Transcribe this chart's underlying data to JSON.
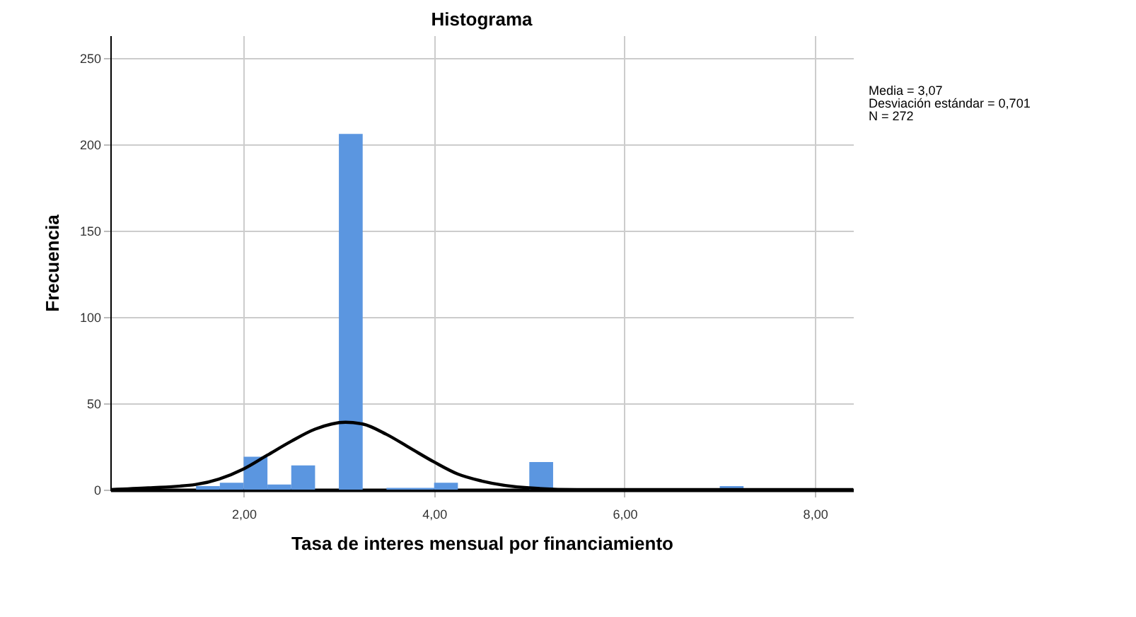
{
  "chart_data": {
    "type": "histogram",
    "title": "Histograma",
    "xlabel": "Tasa de interes mensual por financiamiento",
    "ylabel": "Frecuencia",
    "bins": [
      1.5,
      1.75,
      2.0,
      2.25,
      2.5,
      2.75,
      3.0,
      3.25,
      3.5,
      3.75,
      4.0,
      4.25,
      4.5,
      4.75,
      5.0,
      5.25,
      5.5,
      5.75,
      6.0,
      6.25,
      6.5,
      6.75,
      7.0,
      7.25
    ],
    "values": [
      2,
      4,
      19,
      3,
      14,
      0,
      206,
      0,
      1,
      1,
      4,
      0,
      0,
      0,
      16,
      0,
      0,
      0,
      0,
      0,
      0,
      0,
      2
    ],
    "color": "#5b96e0",
    "series": [
      {
        "type": "line",
        "color": "#000000",
        "x": [
          0.6,
          1.0,
          1.5,
          2.0,
          2.25,
          2.5,
          2.75,
          3.07,
          3.25,
          3.5,
          3.75,
          4.0,
          4.25,
          4.5,
          5.0,
          5.5,
          6.0,
          7.0,
          8.4
        ],
        "values": [
          0,
          1,
          3,
          12,
          20,
          28,
          35,
          39,
          38,
          32,
          24,
          16,
          9,
          5,
          1,
          0,
          0,
          0,
          0
        ]
      }
    ],
    "xlim": [
      0.6,
      8.4
    ],
    "ylim": [
      0,
      263
    ],
    "xticks": [
      {
        "value": 2,
        "label": "2,00"
      },
      {
        "value": 4,
        "label": "4,00"
      },
      {
        "value": 6,
        "label": "6,00"
      },
      {
        "value": 8,
        "label": "8,00"
      }
    ],
    "yticks": [
      0,
      50,
      100,
      150,
      200,
      250
    ],
    "grid": true,
    "annotations": [
      "Media = 3,07",
      "Desviación estándar = 0,701",
      "N = 272"
    ]
  }
}
